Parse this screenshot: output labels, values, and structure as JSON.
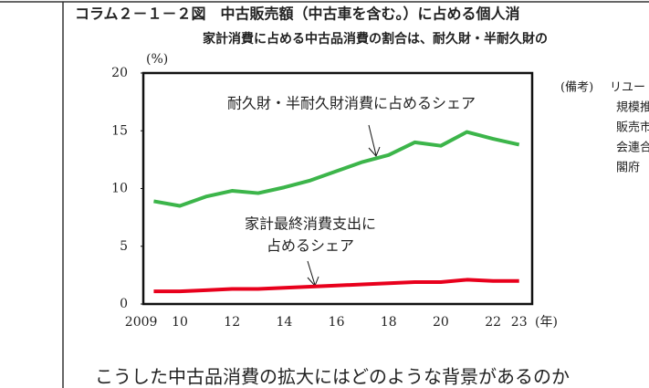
{
  "chart_data": {
    "type": "line",
    "title": "コラム２－１－２図　中古販売額（中古車を含む。）に占める個人消",
    "subtitle": "家計消費に占める中古品消費の割合は、耐久財・半耐久財の",
    "y_label": "(%)",
    "x_unit": "(年)",
    "x": [
      2009,
      2010,
      2011,
      2012,
      2013,
      2014,
      2015,
      2016,
      2017,
      2018,
      2019,
      2020,
      2021,
      2022,
      2023
    ],
    "series": [
      {
        "name": "耐久財・半耐久財消費に占めるシェア",
        "color": "#3cb54a",
        "values": [
          8.9,
          8.5,
          9.3,
          9.8,
          9.6,
          10.1,
          10.7,
          11.5,
          12.3,
          12.9,
          14.0,
          13.7,
          14.9,
          14.3,
          13.8
        ]
      },
      {
        "name": "家計最終消費支出に占めるシェア",
        "color": "#e8001c",
        "values": [
          1.1,
          1.1,
          1.2,
          1.3,
          1.3,
          1.4,
          1.5,
          1.6,
          1.7,
          1.8,
          1.9,
          1.9,
          2.1,
          2.0,
          2.0
        ]
      }
    ],
    "annotations": [
      "耐久財・半耐久財消費に占めるシェア",
      "家計最終消費支出に",
      "占めるシェア"
    ],
    "xlim": [
      2008.6,
      2023.5
    ],
    "xticks": [
      {
        "value": 2009,
        "label": "2009"
      },
      {
        "value": 2010,
        "label": "10"
      },
      {
        "value": 2012,
        "label": "12"
      },
      {
        "value": 2014,
        "label": "14"
      },
      {
        "value": 2016,
        "label": "16"
      },
      {
        "value": 2018,
        "label": "18"
      },
      {
        "value": 2020,
        "label": "20"
      },
      {
        "value": 2022,
        "label": "22"
      },
      {
        "value": 2023,
        "label": "23"
      }
    ],
    "ylim": [
      0,
      20
    ],
    "yticks": [
      0,
      5,
      10,
      15,
      20
    ],
    "grid": false
  },
  "notes": [
    "(備考)",
    "リユー",
    "規模推",
    "販売市",
    "会連合",
    "閣府"
  ],
  "body_text": "こうした中古品消費の拡大にはどのような背景があるのか"
}
